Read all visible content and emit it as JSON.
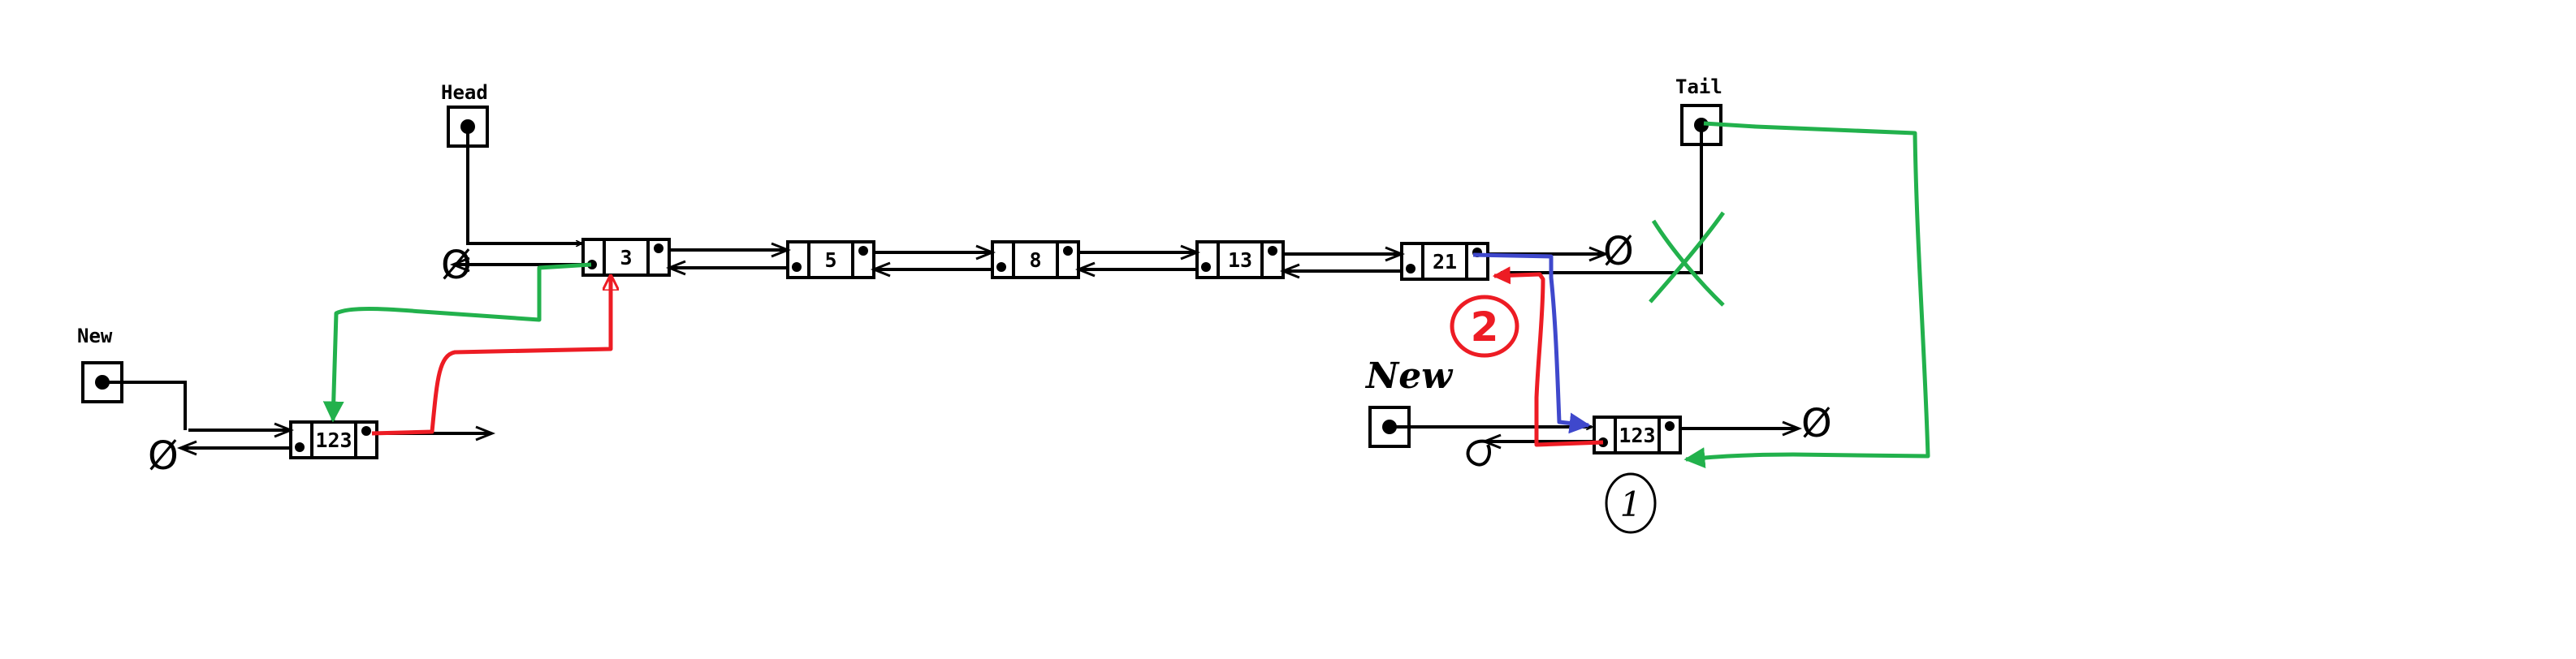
{
  "labels": {
    "head": "Head",
    "tail": "Tail",
    "new_left": "New",
    "new_right": "New"
  },
  "nodes": [
    "3",
    "5",
    "8",
    "13",
    "21"
  ],
  "new_node_left": "123",
  "new_node_right": "123",
  "null_symbol": "Ø",
  "steps": {
    "one": "1",
    "two": "2"
  },
  "colors": {
    "green": "#22b14c",
    "red": "#ed1c24",
    "blue": "#3f48cc",
    "black": "#000000"
  }
}
